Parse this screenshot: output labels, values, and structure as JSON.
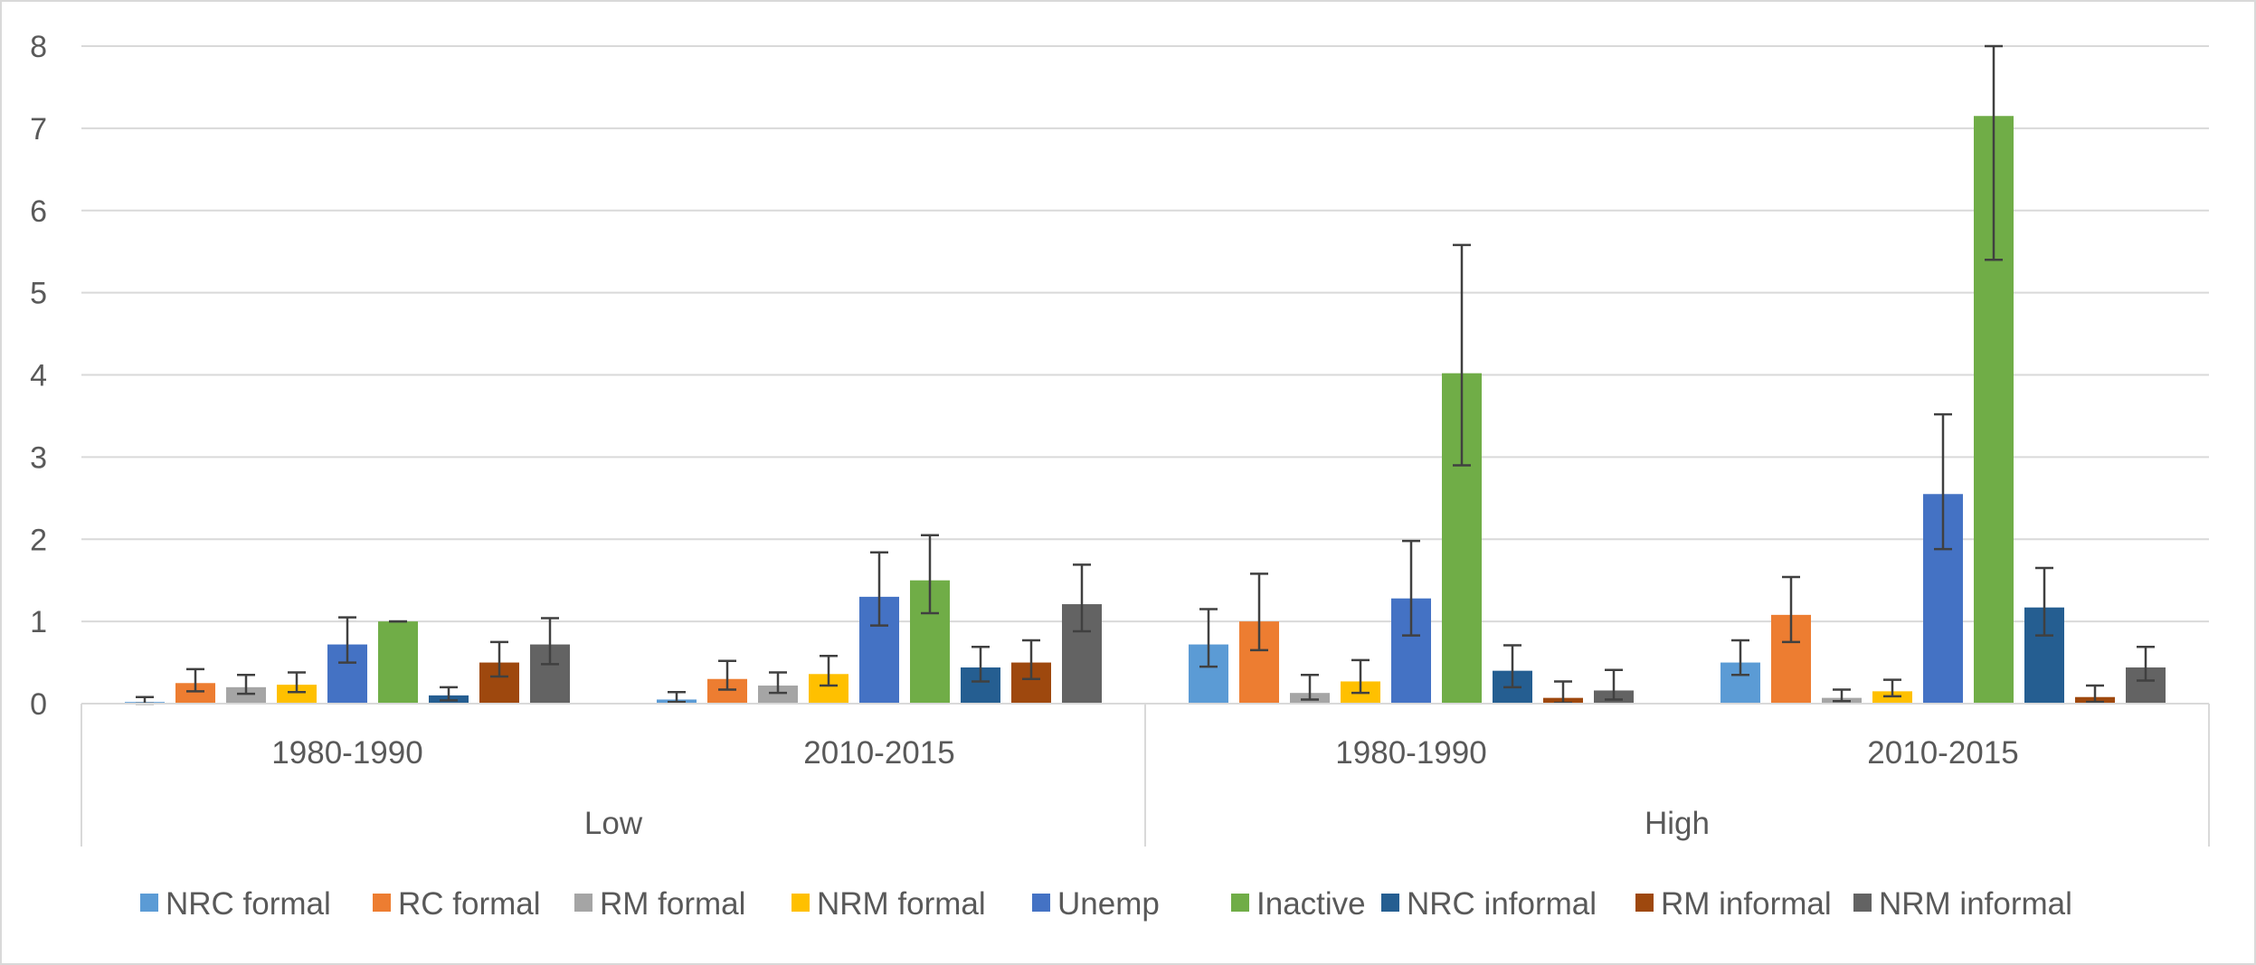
{
  "chart_data": {
    "type": "bar",
    "title": "",
    "xlabel": "",
    "ylabel": "",
    "ylim": [
      0,
      8
    ],
    "yticks": [
      "0",
      "1",
      "2",
      "3",
      "4",
      "5",
      "6",
      "7",
      "8"
    ],
    "grid": true,
    "legend_position": "bottom",
    "error_bars": true,
    "groups": [
      {
        "label": "Low",
        "categories": [
          "1980-1990",
          "2010-2015"
        ]
      },
      {
        "label": "High",
        "categories": [
          "1980-1990",
          "2010-2015"
        ]
      }
    ],
    "categories": [
      "Low 1980-1990",
      "Low 2010-2015",
      "High 1980-1990",
      "High 2010-2015"
    ],
    "series": [
      {
        "name": "NRC formal",
        "color": "#5b9bd5",
        "values": [
          0.02,
          0.05,
          0.72,
          0.5
        ],
        "err_low": [
          0.0,
          0.02,
          0.45,
          0.35
        ],
        "err_high": [
          0.08,
          0.14,
          1.15,
          0.77
        ]
      },
      {
        "name": "RC formal",
        "color": "#ed7d31",
        "values": [
          0.25,
          0.3,
          1.0,
          1.08
        ],
        "err_low": [
          0.15,
          0.17,
          0.65,
          0.75
        ],
        "err_high": [
          0.42,
          0.52,
          1.58,
          1.54
        ]
      },
      {
        "name": "RM formal",
        "color": "#a5a5a5",
        "values": [
          0.2,
          0.22,
          0.13,
          0.07
        ],
        "err_low": [
          0.12,
          0.13,
          0.05,
          0.03
        ],
        "err_high": [
          0.35,
          0.38,
          0.35,
          0.17
        ]
      },
      {
        "name": "NRM formal",
        "color": "#ffc000",
        "values": [
          0.23,
          0.36,
          0.27,
          0.15
        ],
        "err_low": [
          0.14,
          0.22,
          0.13,
          0.09
        ],
        "err_high": [
          0.38,
          0.58,
          0.53,
          0.29
        ]
      },
      {
        "name": "Unemp",
        "color": "#4472c4",
        "values": [
          0.72,
          1.3,
          1.28,
          2.55
        ],
        "err_low": [
          0.5,
          0.95,
          0.83,
          1.88
        ],
        "err_high": [
          1.05,
          1.84,
          1.98,
          3.52
        ]
      },
      {
        "name": "Inactive",
        "color": "#70ad47",
        "values": [
          1.0,
          1.5,
          4.02,
          7.15
        ],
        "err_low": [
          1.0,
          1.1,
          2.9,
          5.4
        ],
        "err_high": [
          1.0,
          2.05,
          5.58,
          8.0
        ]
      },
      {
        "name": "NRC informal",
        "color": "#255e91",
        "values": [
          0.1,
          0.44,
          0.4,
          1.17
        ],
        "err_low": [
          0.04,
          0.27,
          0.2,
          0.83
        ],
        "err_high": [
          0.2,
          0.69,
          0.71,
          1.65
        ]
      },
      {
        "name": "RM informal",
        "color": "#9e480e",
        "values": [
          0.5,
          0.5,
          0.07,
          0.08
        ],
        "err_low": [
          0.33,
          0.3,
          0.01,
          0.02
        ],
        "err_high": [
          0.75,
          0.77,
          0.27,
          0.22
        ]
      },
      {
        "name": "NRM informal",
        "color": "#636363",
        "values": [
          0.72,
          1.21,
          0.16,
          0.44
        ],
        "err_low": [
          0.48,
          0.88,
          0.05,
          0.28
        ],
        "err_high": [
          1.04,
          1.69,
          0.41,
          0.69
        ]
      }
    ]
  }
}
